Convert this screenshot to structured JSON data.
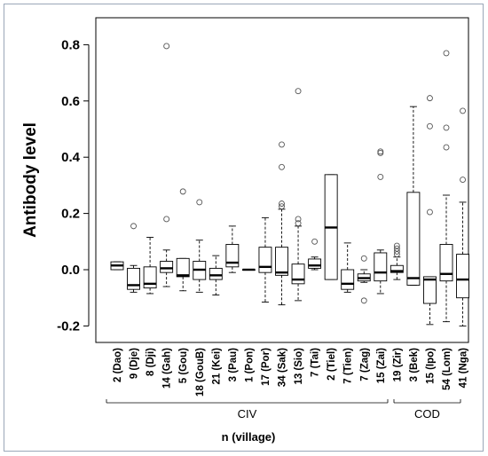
{
  "chart_data": {
    "type": "boxplot",
    "title": "",
    "ylabel": "Antibody level",
    "xlabel": "n (village)",
    "ylim": [
      -0.23,
      0.86
    ],
    "yticks": [
      "-0.2",
      "0.0",
      "0.2",
      "0.4",
      "0.6",
      "0.8"
    ],
    "ytick_values": [
      -0.2,
      0.0,
      0.2,
      0.4,
      0.6,
      0.8
    ],
    "groups": [
      {
        "name": "CIV",
        "from": 0,
        "to": 23
      },
      {
        "name": "COD",
        "from": 24,
        "to": 28
      }
    ],
    "categories": [
      "2 (Dao)",
      "9 (Dje)",
      "8 (Dji)",
      "14 (Gah)",
      "5 (Gou)",
      "18 (GouB)",
      "21 (Kei)",
      "3 (Pau)",
      "1 (Pon)",
      "17 (Por)",
      "34 (Sak)",
      "13 (Sio)",
      "7 (Tai)",
      "2 (Tiel)",
      "7 (Tien)",
      "7 (Zag)",
      "15 (Zai)",
      "19 (Zir)",
      "3 (Bek)",
      "15 (Ipo)",
      "54 (Lom)",
      "41 (Nga)"
    ],
    "boxes": [
      {
        "whisker_low": 0.0,
        "q1": 0.0,
        "median": 0.015,
        "q3": 0.028,
        "whisker_high": 0.028,
        "outliers": []
      },
      {
        "whisker_low": -0.08,
        "q1": -0.07,
        "median": -0.055,
        "q3": 0.005,
        "whisker_high": 0.015,
        "outliers": [
          0.155
        ]
      },
      {
        "whisker_low": -0.085,
        "q1": -0.065,
        "median": -0.05,
        "q3": 0.01,
        "whisker_high": 0.115,
        "outliers": []
      },
      {
        "whisker_low": -0.06,
        "q1": -0.01,
        "median": 0.005,
        "q3": 0.03,
        "whisker_high": 0.07,
        "outliers": [
          0.18,
          0.795
        ]
      },
      {
        "whisker_low": -0.075,
        "q1": -0.025,
        "median": -0.02,
        "q3": 0.04,
        "whisker_high": 0.04,
        "outliers": [
          0.278
        ]
      },
      {
        "whisker_low": -0.08,
        "q1": -0.035,
        "median": 0.0,
        "q3": 0.03,
        "whisker_high": 0.105,
        "outliers": [
          0.24
        ]
      },
      {
        "whisker_low": -0.09,
        "q1": -0.035,
        "median": -0.02,
        "q3": 0.005,
        "whisker_high": 0.05,
        "outliers": []
      },
      {
        "whisker_low": -0.01,
        "q1": 0.01,
        "median": 0.025,
        "q3": 0.09,
        "whisker_high": 0.155,
        "outliers": []
      },
      {
        "whisker_low": 0.0,
        "q1": 0.0,
        "median": 0.0,
        "q3": 0.0,
        "whisker_high": 0.0,
        "outliers": []
      },
      {
        "whisker_low": -0.115,
        "q1": -0.01,
        "median": 0.01,
        "q3": 0.08,
        "whisker_high": 0.185,
        "outliers": []
      },
      {
        "whisker_low": -0.125,
        "q1": -0.02,
        "median": -0.01,
        "q3": 0.08,
        "whisker_high": 0.215,
        "outliers": [
          0.225,
          0.235,
          0.365,
          0.445
        ]
      },
      {
        "whisker_low": -0.11,
        "q1": -0.05,
        "median": -0.035,
        "q3": 0.02,
        "whisker_high": 0.155,
        "outliers": [
          0.165,
          0.18,
          0.635
        ]
      },
      {
        "whisker_low": 0.0,
        "q1": 0.005,
        "median": 0.015,
        "q3": 0.038,
        "whisker_high": 0.045,
        "outliers": [
          0.1
        ]
      },
      {
        "whisker_low": -0.035,
        "q1": -0.035,
        "median": 0.15,
        "q3": 0.338,
        "whisker_high": 0.338,
        "outliers": []
      },
      {
        "whisker_low": -0.08,
        "q1": -0.07,
        "median": -0.05,
        "q3": 0.0,
        "whisker_high": 0.095,
        "outliers": []
      },
      {
        "whisker_low": -0.045,
        "q1": -0.04,
        "median": -0.03,
        "q3": -0.015,
        "whisker_high": 0.0,
        "outliers": [
          0.04,
          -0.11
        ]
      },
      {
        "whisker_low": -0.085,
        "q1": -0.04,
        "median": -0.01,
        "q3": 0.06,
        "whisker_high": 0.07,
        "outliers": [
          0.33,
          0.415,
          0.42
        ]
      },
      {
        "whisker_low": -0.035,
        "q1": -0.01,
        "median": -0.005,
        "q3": 0.015,
        "whisker_high": 0.045,
        "outliers": [
          0.055,
          0.065,
          0.075,
          0.085
        ]
      },
      {
        "whisker_low": -0.055,
        "q1": -0.055,
        "median": -0.03,
        "q3": 0.275,
        "whisker_high": 0.58,
        "outliers": []
      },
      {
        "whisker_low": -0.195,
        "q1": -0.12,
        "median": -0.035,
        "q3": -0.025,
        "whisker_high": -0.025,
        "outliers": [
          0.205,
          0.51,
          0.61
        ]
      },
      {
        "whisker_low": -0.185,
        "q1": -0.04,
        "median": -0.015,
        "q3": 0.09,
        "whisker_high": 0.265,
        "outliers": [
          0.435,
          0.505,
          0.77
        ]
      },
      {
        "whisker_low": -0.2,
        "q1": -0.1,
        "median": -0.035,
        "q3": 0.055,
        "whisker_high": 0.24,
        "outliers": [
          0.32,
          0.565
        ]
      }
    ]
  }
}
